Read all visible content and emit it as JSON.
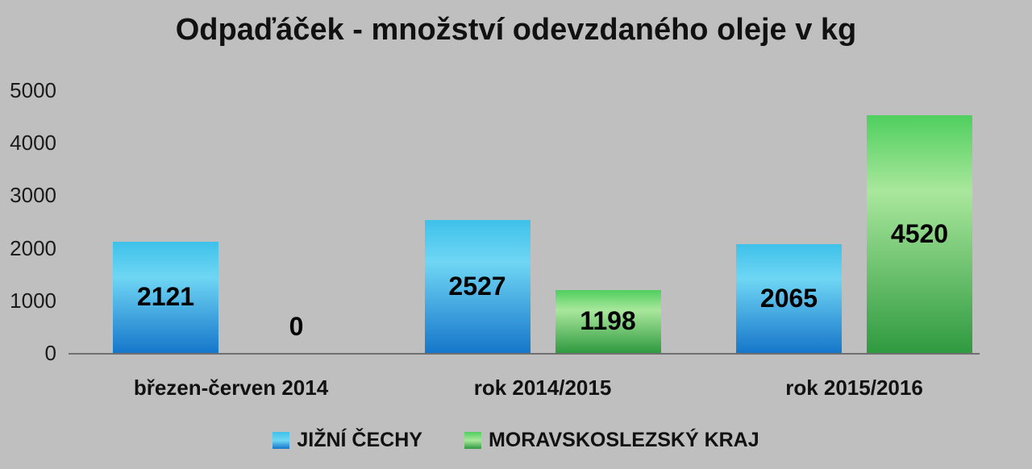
{
  "chart_data": {
    "type": "bar",
    "title": "Odpaďáček - množství odevzdaného oleje v kg",
    "categories": [
      "březen-červen 2014",
      "rok 2014/2015",
      "rok 2015/2016"
    ],
    "series": [
      {
        "name": "JIŽNÍ ČECHY",
        "values": [
          2121,
          2527,
          2065
        ],
        "gradient": [
          "#3ec1ea",
          "#6fd6f4",
          "#1676ca"
        ]
      },
      {
        "name": "MORAVSKOSLEZSKÝ KRAJ",
        "values": [
          0,
          1198,
          4520
        ],
        "gradient": [
          "#4fcf5e",
          "#a9e79c",
          "#2f9a40"
        ]
      }
    ],
    "ylim": [
      0,
      5000
    ],
    "yticks": [
      0,
      1000,
      2000,
      3000,
      4000,
      5000
    ],
    "legend_position": "bottom",
    "grid": false,
    "background_color": "#bfbfbf",
    "axis_line_color": "#6f6f6f",
    "text_color": "#111111"
  }
}
